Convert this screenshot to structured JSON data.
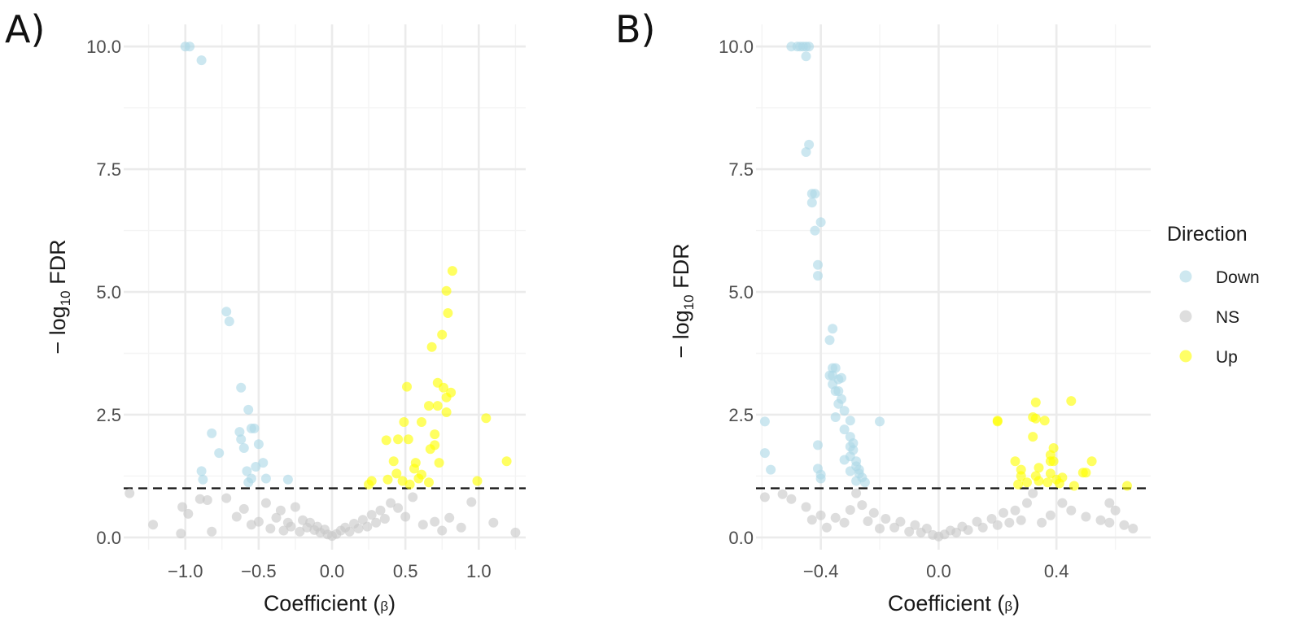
{
  "chart_data": [
    {
      "type": "scatter",
      "panel_label": "A)",
      "xlabel": "Coefficient (",
      "xlabel_symbol": "β",
      "xlabel_close": ")",
      "ylabel_prefix": "− log",
      "ylabel_sub": "10",
      "ylabel_suffix": " FDR",
      "xlim": [
        -1.42,
        1.32
      ],
      "ylim": [
        -0.25,
        10.45
      ],
      "x_ticks": [
        -1.0,
        -0.5,
        0.0,
        0.5,
        1.0
      ],
      "x_tick_labels": [
        "−1.0",
        "−0.5",
        "0.0",
        "0.5",
        "1.0"
      ],
      "y_ticks": [
        0.0,
        2.5,
        5.0,
        7.5,
        10.0
      ],
      "y_tick_labels": [
        "0.0",
        "2.5",
        "5.0",
        "7.5",
        "10.0"
      ],
      "threshold": 1.0,
      "series": [
        {
          "name": "Down",
          "points": [
            [
              -1.0,
              10.0
            ],
            [
              -0.97,
              10.0
            ],
            [
              -0.89,
              9.72
            ],
            [
              -0.72,
              4.6
            ],
            [
              -0.7,
              4.4
            ],
            [
              -0.62,
              3.05
            ],
            [
              -0.57,
              2.6
            ],
            [
              -0.55,
              2.22
            ],
            [
              -0.53,
              2.22
            ],
            [
              -0.82,
              2.12
            ],
            [
              -0.63,
              2.15
            ],
            [
              -0.62,
              2.0
            ],
            [
              -0.5,
              1.9
            ],
            [
              -0.6,
              1.82
            ],
            [
              -0.77,
              1.72
            ],
            [
              -0.47,
              1.52
            ],
            [
              -0.52,
              1.44
            ],
            [
              -0.89,
              1.35
            ],
            [
              -0.58,
              1.35
            ],
            [
              -0.88,
              1.18
            ],
            [
              -0.55,
              1.2
            ],
            [
              -0.45,
              1.2
            ],
            [
              -0.3,
              1.18
            ],
            [
              -0.57,
              1.12
            ]
          ]
        },
        {
          "name": "NS",
          "points": [
            [
              -1.38,
              0.9
            ],
            [
              -1.22,
              0.26
            ],
            [
              -1.03,
              0.08
            ],
            [
              -1.02,
              0.62
            ],
            [
              -0.98,
              0.48
            ],
            [
              -0.9,
              0.78
            ],
            [
              -0.85,
              0.76
            ],
            [
              -0.72,
              0.8
            ],
            [
              -0.82,
              0.12
            ],
            [
              -0.65,
              0.42
            ],
            [
              -0.6,
              0.58
            ],
            [
              -0.55,
              0.26
            ],
            [
              -0.5,
              0.32
            ],
            [
              -0.45,
              0.7
            ],
            [
              -0.42,
              0.18
            ],
            [
              -0.38,
              0.4
            ],
            [
              -0.35,
              0.55
            ],
            [
              -0.33,
              0.14
            ],
            [
              -0.3,
              0.3
            ],
            [
              -0.28,
              0.22
            ],
            [
              -0.25,
              0.62
            ],
            [
              -0.22,
              0.12
            ],
            [
              -0.2,
              0.35
            ],
            [
              -0.17,
              0.2
            ],
            [
              -0.15,
              0.3
            ],
            [
              -0.12,
              0.15
            ],
            [
              -0.1,
              0.22
            ],
            [
              -0.08,
              0.1
            ],
            [
              -0.05,
              0.16
            ],
            [
              -0.03,
              0.06
            ],
            [
              0.0,
              0.03
            ],
            [
              0.03,
              0.07
            ],
            [
              0.06,
              0.14
            ],
            [
              0.09,
              0.2
            ],
            [
              0.12,
              0.12
            ],
            [
              0.15,
              0.28
            ],
            [
              0.18,
              0.18
            ],
            [
              0.21,
              0.36
            ],
            [
              0.24,
              0.22
            ],
            [
              0.27,
              0.46
            ],
            [
              0.3,
              0.3
            ],
            [
              0.33,
              0.55
            ],
            [
              0.36,
              0.38
            ],
            [
              0.4,
              0.7
            ],
            [
              0.45,
              0.6
            ],
            [
              0.5,
              0.42
            ],
            [
              0.55,
              0.82
            ],
            [
              0.62,
              0.26
            ],
            [
              0.7,
              0.32
            ],
            [
              0.75,
              0.14
            ],
            [
              0.8,
              0.4
            ],
            [
              0.88,
              0.2
            ],
            [
              0.95,
              0.72
            ],
            [
              1.1,
              0.3
            ],
            [
              1.25,
              0.1
            ]
          ]
        },
        {
          "name": "Up",
          "points": [
            [
              0.82,
              5.43
            ],
            [
              0.78,
              5.02
            ],
            [
              0.79,
              4.57
            ],
            [
              0.75,
              4.13
            ],
            [
              0.68,
              3.88
            ],
            [
              0.72,
              3.15
            ],
            [
              0.76,
              3.05
            ],
            [
              0.51,
              3.07
            ],
            [
              0.81,
              2.95
            ],
            [
              0.78,
              2.85
            ],
            [
              0.66,
              2.68
            ],
            [
              0.72,
              2.68
            ],
            [
              0.78,
              2.55
            ],
            [
              0.61,
              2.35
            ],
            [
              1.05,
              2.43
            ],
            [
              0.49,
              2.35
            ],
            [
              0.45,
              2.0
            ],
            [
              0.52,
              2.0
            ],
            [
              0.7,
              2.1
            ],
            [
              0.37,
              1.98
            ],
            [
              0.67,
              1.8
            ],
            [
              0.7,
              1.88
            ],
            [
              1.19,
              1.55
            ],
            [
              0.42,
              1.55
            ],
            [
              0.57,
              1.52
            ],
            [
              0.73,
              1.52
            ],
            [
              0.56,
              1.4
            ],
            [
              0.44,
              1.3
            ],
            [
              0.61,
              1.28
            ],
            [
              0.59,
              1.2
            ],
            [
              0.48,
              1.15
            ],
            [
              0.38,
              1.18
            ],
            [
              0.27,
              1.15
            ],
            [
              0.66,
              1.12
            ],
            [
              0.99,
              1.15
            ],
            [
              0.53,
              1.08
            ],
            [
              0.25,
              1.08
            ]
          ]
        }
      ]
    },
    {
      "type": "scatter",
      "panel_label": "B)",
      "xlabel": "Coefficient (",
      "xlabel_symbol": "β",
      "xlabel_close": ")",
      "ylabel_prefix": "− log",
      "ylabel_sub": "10",
      "ylabel_suffix": " FDR",
      "xlim": [
        -0.62,
        0.72
      ],
      "ylim": [
        -0.25,
        10.45
      ],
      "x_ticks": [
        -0.4,
        0.0,
        0.4
      ],
      "x_tick_labels": [
        "−0.4",
        "0.0",
        "0.4"
      ],
      "y_ticks": [
        0.0,
        2.5,
        5.0,
        7.5,
        10.0
      ],
      "y_tick_labels": [
        "0.0",
        "2.5",
        "5.0",
        "7.5",
        "10.0"
      ],
      "threshold": 1.0,
      "series": [
        {
          "name": "Down",
          "points": [
            [
              -0.5,
              10.0
            ],
            [
              -0.48,
              10.0
            ],
            [
              -0.47,
              10.0
            ],
            [
              -0.46,
              10.0
            ],
            [
              -0.45,
              10.0
            ],
            [
              -0.44,
              10.0
            ],
            [
              -0.45,
              9.8
            ],
            [
              -0.44,
              8.0
            ],
            [
              -0.45,
              7.85
            ],
            [
              -0.43,
              7.0
            ],
            [
              -0.42,
              7.0
            ],
            [
              -0.43,
              6.82
            ],
            [
              -0.4,
              6.42
            ],
            [
              -0.42,
              6.25
            ],
            [
              -0.41,
              5.55
            ],
            [
              -0.41,
              5.33
            ],
            [
              -0.36,
              4.25
            ],
            [
              -0.37,
              4.02
            ],
            [
              -0.36,
              3.45
            ],
            [
              -0.35,
              3.45
            ],
            [
              -0.36,
              3.3
            ],
            [
              -0.37,
              3.3
            ],
            [
              -0.34,
              3.22
            ],
            [
              -0.33,
              3.25
            ],
            [
              -0.36,
              3.12
            ],
            [
              -0.34,
              2.98
            ],
            [
              -0.35,
              2.98
            ],
            [
              -0.33,
              2.82
            ],
            [
              -0.34,
              2.72
            ],
            [
              -0.32,
              2.58
            ],
            [
              -0.35,
              2.45
            ],
            [
              -0.2,
              2.36
            ],
            [
              -0.3,
              2.38
            ],
            [
              -0.59,
              2.36
            ],
            [
              -0.32,
              2.2
            ],
            [
              -0.3,
              2.05
            ],
            [
              -0.29,
              1.92
            ],
            [
              -0.41,
              1.88
            ],
            [
              -0.3,
              1.85
            ],
            [
              -0.29,
              1.78
            ],
            [
              -0.3,
              1.65
            ],
            [
              -0.59,
              1.72
            ],
            [
              -0.32,
              1.58
            ],
            [
              -0.28,
              1.55
            ],
            [
              -0.28,
              1.45
            ],
            [
              -0.27,
              1.38
            ],
            [
              -0.41,
              1.4
            ],
            [
              -0.3,
              1.35
            ],
            [
              -0.57,
              1.38
            ],
            [
              -0.27,
              1.3
            ],
            [
              -0.4,
              1.28
            ],
            [
              -0.26,
              1.22
            ],
            [
              -0.4,
              1.2
            ],
            [
              -0.28,
              1.15
            ],
            [
              -0.25,
              1.12
            ]
          ]
        },
        {
          "name": "NS",
          "points": [
            [
              -0.59,
              0.82
            ],
            [
              -0.53,
              0.88
            ],
            [
              -0.5,
              0.78
            ],
            [
              -0.45,
              0.62
            ],
            [
              -0.43,
              0.36
            ],
            [
              -0.4,
              0.45
            ],
            [
              -0.38,
              0.2
            ],
            [
              -0.35,
              0.4
            ],
            [
              -0.32,
              0.3
            ],
            [
              -0.3,
              0.56
            ],
            [
              -0.28,
              0.9
            ],
            [
              -0.26,
              0.66
            ],
            [
              -0.24,
              0.33
            ],
            [
              -0.22,
              0.5
            ],
            [
              -0.2,
              0.18
            ],
            [
              -0.18,
              0.38
            ],
            [
              -0.15,
              0.2
            ],
            [
              -0.13,
              0.32
            ],
            [
              -0.1,
              0.12
            ],
            [
              -0.08,
              0.25
            ],
            [
              -0.06,
              0.1
            ],
            [
              -0.04,
              0.18
            ],
            [
              -0.02,
              0.05
            ],
            [
              0.0,
              0.02
            ],
            [
              0.02,
              0.06
            ],
            [
              0.04,
              0.14
            ],
            [
              0.06,
              0.1
            ],
            [
              0.08,
              0.22
            ],
            [
              0.1,
              0.15
            ],
            [
              0.13,
              0.32
            ],
            [
              0.15,
              0.2
            ],
            [
              0.18,
              0.38
            ],
            [
              0.2,
              0.25
            ],
            [
              0.22,
              0.5
            ],
            [
              0.24,
              0.3
            ],
            [
              0.26,
              0.55
            ],
            [
              0.28,
              0.35
            ],
            [
              0.3,
              0.7
            ],
            [
              0.32,
              0.9
            ],
            [
              0.35,
              0.3
            ],
            [
              0.38,
              0.45
            ],
            [
              0.42,
              0.7
            ],
            [
              0.45,
              0.55
            ],
            [
              0.5,
              0.42
            ],
            [
              0.55,
              0.35
            ],
            [
              0.58,
              0.3
            ],
            [
              0.6,
              0.55
            ],
            [
              0.63,
              0.25
            ],
            [
              0.66,
              0.18
            ],
            [
              0.58,
              0.7
            ]
          ]
        },
        {
          "name": "Up",
          "points": [
            [
              0.45,
              2.78
            ],
            [
              0.33,
              2.75
            ],
            [
              0.32,
              2.45
            ],
            [
              0.33,
              2.42
            ],
            [
              0.2,
              2.38
            ],
            [
              0.2,
              2.36
            ],
            [
              0.36,
              2.38
            ],
            [
              0.32,
              2.05
            ],
            [
              0.39,
              1.82
            ],
            [
              0.38,
              1.68
            ],
            [
              0.38,
              1.55
            ],
            [
              0.39,
              1.55
            ],
            [
              0.52,
              1.55
            ],
            [
              0.26,
              1.55
            ],
            [
              0.34,
              1.42
            ],
            [
              0.28,
              1.38
            ],
            [
              0.49,
              1.32
            ],
            [
              0.5,
              1.32
            ],
            [
              0.38,
              1.3
            ],
            [
              0.33,
              1.25
            ],
            [
              0.28,
              1.25
            ],
            [
              0.42,
              1.22
            ],
            [
              0.4,
              1.18
            ],
            [
              0.34,
              1.15
            ],
            [
              0.3,
              1.12
            ],
            [
              0.27,
              1.08
            ],
            [
              0.46,
              1.05
            ],
            [
              0.64,
              1.05
            ],
            [
              0.41,
              1.1
            ],
            [
              0.37,
              1.12
            ]
          ]
        }
      ]
    }
  ],
  "legend": {
    "title": "Direction",
    "items": [
      {
        "label": "Down",
        "color": "#add8e6"
      },
      {
        "label": "NS",
        "color": "#c8c8c8"
      },
      {
        "label": "Up",
        "color": "#ffff00"
      }
    ]
  },
  "colors": {
    "Down": "#add8e6",
    "NS": "#c8c8c8",
    "Up": "#ffff00",
    "threshold": "#111111"
  }
}
